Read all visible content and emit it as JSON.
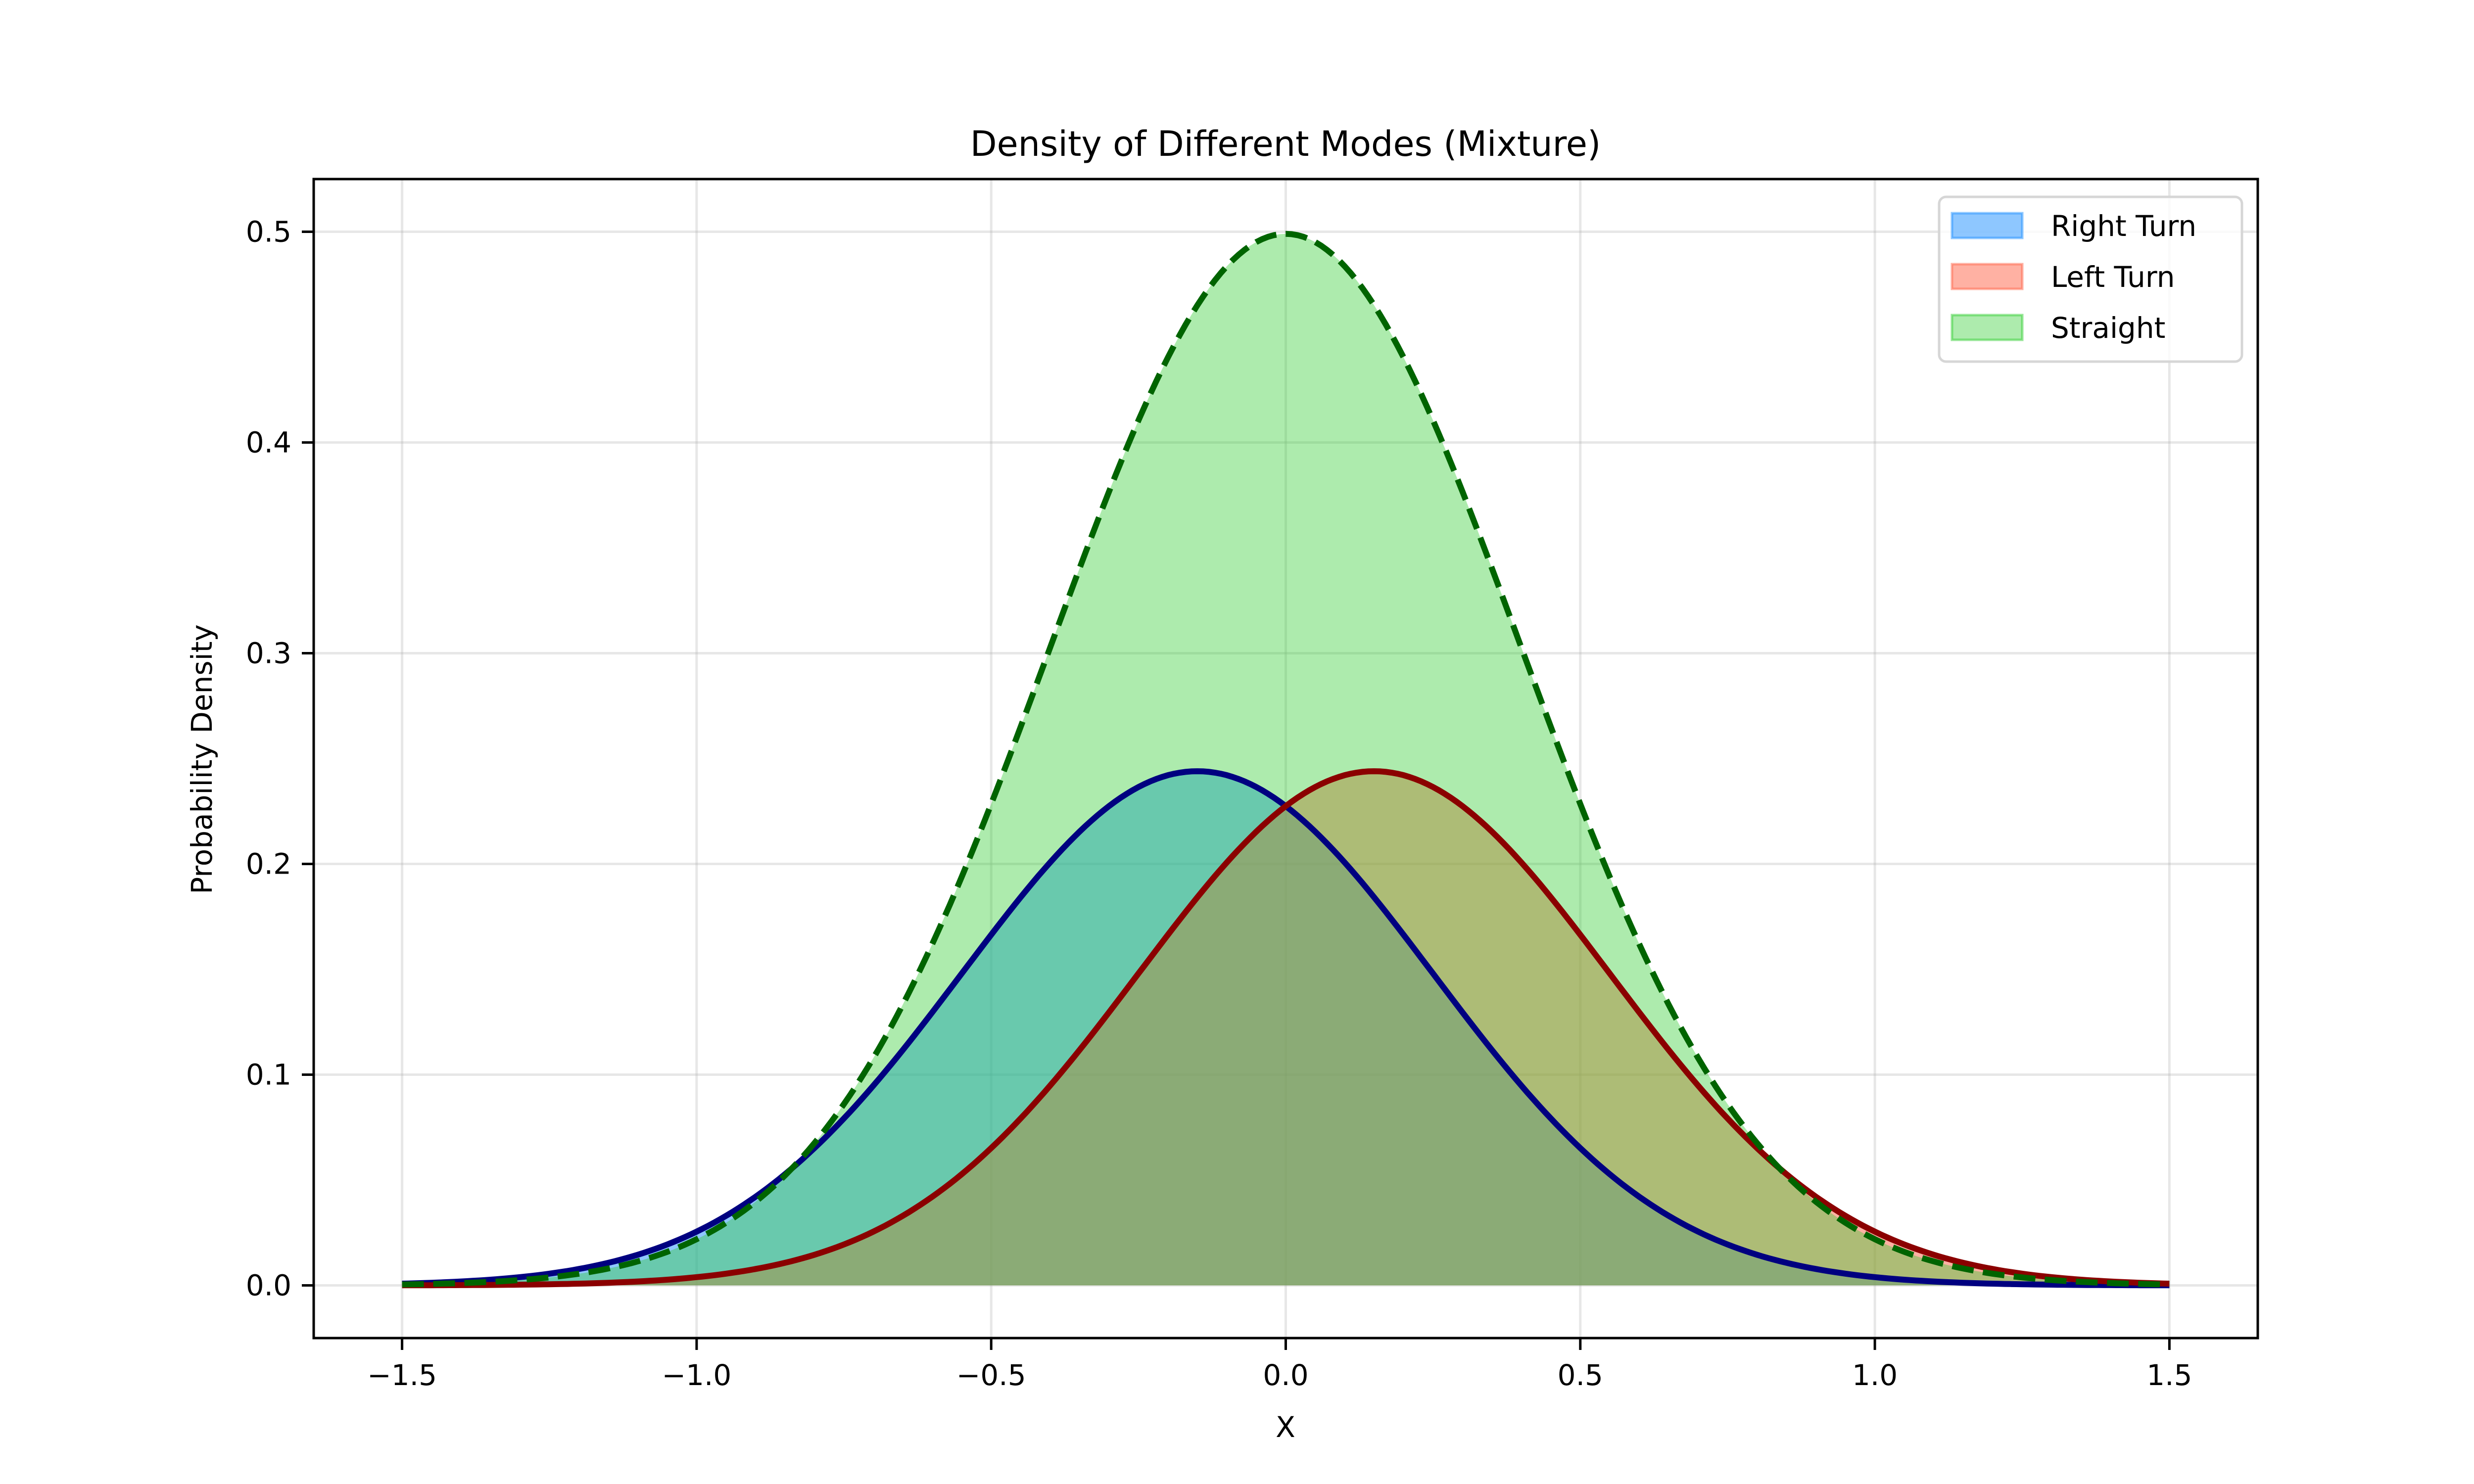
{
  "chart_data": {
    "type": "area",
    "title": "Density of Different Modes (Mixture)",
    "xlabel": "X",
    "ylabel": "Probability Density",
    "xlim": [
      -1.65,
      1.65
    ],
    "ylim": [
      -0.025,
      0.525
    ],
    "x_domain": [
      -1.5,
      1.5
    ],
    "xticks": [
      -1.5,
      -1.0,
      -0.5,
      0.0,
      0.5,
      1.0,
      1.5
    ],
    "xtick_labels": [
      "−1.5",
      "−1.0",
      "−0.5",
      "0.0",
      "0.5",
      "1.0",
      "1.5"
    ],
    "yticks": [
      0.0,
      0.1,
      0.2,
      0.3,
      0.4,
      0.5
    ],
    "ytick_labels": [
      "0.0",
      "0.1",
      "0.2",
      "0.3",
      "0.4",
      "0.5"
    ],
    "grid": true,
    "legend_position": "top-right",
    "series": [
      {
        "name": "Right Turn",
        "distribution": "gaussian",
        "mean": -0.15,
        "std": 0.4,
        "peak": 0.244,
        "fill": "#1E90FF",
        "fill_opacity": 0.5,
        "line": "#000080",
        "dashed": false
      },
      {
        "name": "Left Turn",
        "distribution": "gaussian",
        "mean": 0.15,
        "std": 0.4,
        "peak": 0.244,
        "fill": "#FF6347",
        "fill_opacity": 0.5,
        "line": "#8B0000",
        "dashed": false
      },
      {
        "name": "Straight",
        "distribution": "gaussian",
        "mean": 0.0,
        "std": 0.4,
        "peak": 0.499,
        "fill": "#32CD32",
        "fill_opacity": 0.4,
        "line": "#006400",
        "dashed": true
      }
    ]
  }
}
